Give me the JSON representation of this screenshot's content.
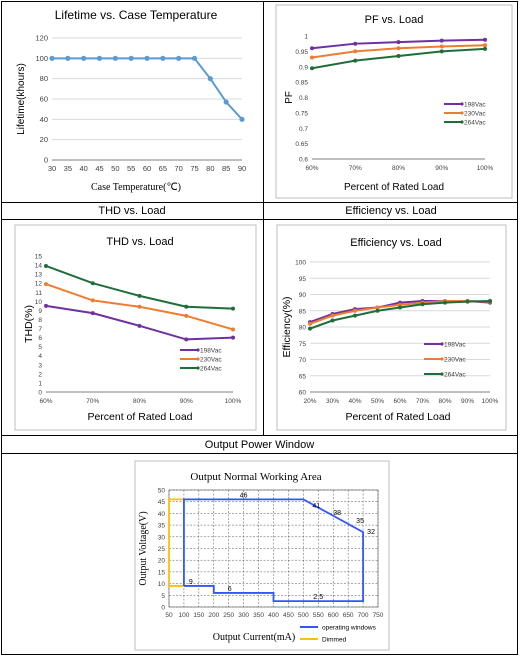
{
  "captions": {
    "thd": "THD vs. Load",
    "eff": "Efficiency vs. Load",
    "opw": "Output Power Window"
  },
  "chart_data": [
    {
      "type": "line",
      "id": "lifetime",
      "title": "Lifetime vs. Case Temperature",
      "xlabel": "Case Temperature(℃)",
      "ylabel": "Lifetime(khours)",
      "x": [
        30,
        35,
        40,
        45,
        50,
        55,
        60,
        65,
        70,
        75,
        80,
        85,
        90
      ],
      "xticks": [
        "30",
        "35",
        "40",
        "45",
        "50",
        "55",
        "60",
        "65",
        "70",
        "75",
        "80",
        "85",
        "90"
      ],
      "xlim": [
        30,
        90
      ],
      "ylim": [
        0,
        120
      ],
      "yticks": [
        "0",
        "20",
        "40",
        "60",
        "80",
        "100",
        "120"
      ],
      "series": [
        {
          "values": [
            100,
            100,
            100,
            100,
            100,
            100,
            100,
            100,
            100,
            100,
            80,
            57,
            40
          ],
          "color": "#5b9bd5"
        }
      ]
    },
    {
      "type": "line",
      "id": "pf",
      "title": "PF vs. Load",
      "xlabel": "Percent of Rated Load",
      "ylabel": "PF",
      "categories": [
        "60%",
        "70%",
        "80%",
        "90%",
        "100%"
      ],
      "ylim": [
        0.6,
        1
      ],
      "yticks": [
        "0.6",
        "0.65",
        "0.7",
        "0.75",
        "0.8",
        "0.85",
        "0.9",
        "0.95",
        "1"
      ],
      "series": [
        {
          "name": "198Vac",
          "values": [
            0.96,
            0.975,
            0.98,
            0.985,
            0.988
          ],
          "color": "#7030a0"
        },
        {
          "name": "230Vac",
          "values": [
            0.93,
            0.95,
            0.96,
            0.966,
            0.97
          ],
          "color": "#ed7d31"
        },
        {
          "name": "264Vac",
          "values": [
            0.895,
            0.92,
            0.935,
            0.95,
            0.958
          ],
          "color": "#1f6e3a"
        }
      ]
    },
    {
      "type": "line",
      "id": "thd",
      "title": "THD vs. Load",
      "xlabel": "Percent of Rated Load",
      "ylabel": "THD(%)",
      "categories": [
        "60%",
        "70%",
        "80%",
        "90%",
        "100%"
      ],
      "ylim": [
        0,
        15
      ],
      "yticks": [
        "0",
        "1",
        "2",
        "3",
        "4",
        "5",
        "6",
        "7",
        "8",
        "9",
        "10",
        "11",
        "12",
        "13",
        "14",
        "15"
      ],
      "series": [
        {
          "name": "198Vac",
          "values": [
            9.5,
            8.7,
            7.3,
            5.8,
            6.0
          ],
          "color": "#7030a0"
        },
        {
          "name": "230Vac",
          "values": [
            11.9,
            10.1,
            9.4,
            8.4,
            6.9
          ],
          "color": "#ed7d31"
        },
        {
          "name": "264Vac",
          "values": [
            13.9,
            12.0,
            10.6,
            9.4,
            9.2
          ],
          "color": "#1f6e3a"
        }
      ]
    },
    {
      "type": "line",
      "id": "eff",
      "title": "Efficiency vs. Load",
      "xlabel": "Percent of Rated Load",
      "ylabel": "Efficiency(%)",
      "categories": [
        "20%",
        "30%",
        "40%",
        "50%",
        "60%",
        "70%",
        "80%",
        "90%",
        "100%"
      ],
      "ylim": [
        60,
        100
      ],
      "yticks": [
        "60",
        "65",
        "70",
        "75",
        "80",
        "85",
        "90",
        "95",
        "100"
      ],
      "series": [
        {
          "name": "198Vac",
          "values": [
            81.5,
            84.0,
            85.5,
            86.0,
            87.5,
            88.0,
            88.0,
            88.0,
            87.5
          ],
          "color": "#7030a0"
        },
        {
          "name": "230Vac",
          "values": [
            81.0,
            83.5,
            85.0,
            86.0,
            86.8,
            87.5,
            88.0,
            88.0,
            87.8
          ],
          "color": "#ed7d31"
        },
        {
          "name": "264Vac",
          "values": [
            79.5,
            82.0,
            83.5,
            85.0,
            86.0,
            87.0,
            87.5,
            87.8,
            88.0
          ],
          "color": "#1f6e3a"
        }
      ]
    },
    {
      "type": "area",
      "id": "window",
      "title": "Output Normal Working Area",
      "xlabel": "Output Current(mA)",
      "ylabel": "Output Voltage(V)",
      "xlim": [
        50,
        750
      ],
      "ylim": [
        0,
        50
      ],
      "xticks": [
        "50",
        "100",
        "150",
        "200",
        "250",
        "300",
        "350",
        "400",
        "450",
        "500",
        "550",
        "600",
        "650",
        "700",
        "750"
      ],
      "yticks": [
        "0",
        "5",
        "10",
        "15",
        "20",
        "25",
        "30",
        "35",
        "40",
        "45",
        "50"
      ],
      "legend": [
        "operating windows",
        "Dimmed"
      ],
      "operating_outline": [
        [
          100,
          9
        ],
        [
          100,
          46
        ],
        [
          500,
          46
        ],
        [
          700,
          32
        ],
        [
          700,
          2.5
        ],
        [
          400,
          2.5
        ],
        [
          400,
          6
        ],
        [
          200,
          6
        ],
        [
          200,
          9
        ],
        [
          100,
          9
        ]
      ],
      "dimmed_outline": [
        [
          100,
          9
        ],
        [
          50,
          9
        ],
        [
          50,
          46
        ],
        [
          100,
          46
        ]
      ],
      "labels": [
        {
          "x": 300,
          "y": 46,
          "text": "46"
        },
        {
          "x": 550,
          "y": 41,
          "text": "41"
        },
        {
          "x": 620,
          "y": 38,
          "text": "38"
        },
        {
          "x": 690,
          "y": 35,
          "text": "35"
        },
        {
          "x": 700,
          "y": 32,
          "text": "32"
        },
        {
          "x": 150,
          "y": 9,
          "text": "9"
        },
        {
          "x": 300,
          "y": 6,
          "text": "6"
        },
        {
          "x": 550,
          "y": 2.5,
          "text": "2.5"
        }
      ],
      "colors": {
        "operating": "#3355ff",
        "dimmed": "#ffc000"
      }
    }
  ]
}
